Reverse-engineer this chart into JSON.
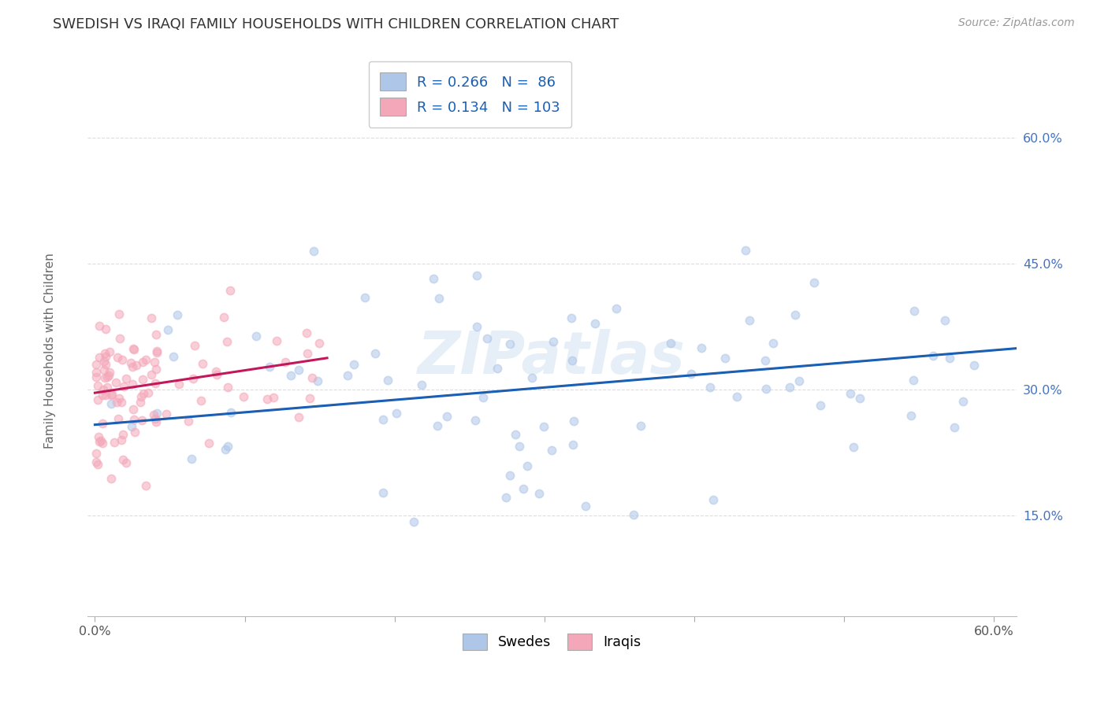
{
  "title": "SWEDISH VS IRAQI FAMILY HOUSEHOLDS WITH CHILDREN CORRELATION CHART",
  "source": "Source: ZipAtlas.com",
  "ylabel": "Family Households with Children",
  "watermark": "ZIPatlas",
  "legend_sw_R": "0.266",
  "legend_sw_N": "86",
  "legend_iq_R": "0.134",
  "legend_iq_N": "103",
  "swedes_color": "#aec6e8",
  "iraqis_color": "#f4a7b9",
  "swedes_line_color": "#1a5fb4",
  "iraqis_line_color": "#c2185b",
  "dashed_line_color": "#bbbbbb",
  "grid_color": "#dddddd",
  "title_color": "#333333",
  "title_fontsize": 13,
  "source_color": "#999999",
  "source_fontsize": 10,
  "watermark_color": "#c8ddf0",
  "watermark_alpha": 0.45,
  "scatter_size": 55,
  "scatter_alpha": 0.55,
  "xlim": [
    -0.005,
    0.615
  ],
  "ylim": [
    0.03,
    0.7
  ],
  "xticks": [
    0.0,
    0.1,
    0.2,
    0.3,
    0.4,
    0.5,
    0.6
  ],
  "yticks": [
    0.15,
    0.3,
    0.45,
    0.6
  ],
  "xtick_labels": [
    "0.0%",
    "",
    "",
    "",
    "",
    "",
    "60.0%"
  ],
  "ytick_labels": [
    "15.0%",
    "30.0%",
    "45.0%",
    "60.0%"
  ],
  "figsize": [
    14.06,
    8.92
  ],
  "dpi": 100,
  "sw_intercept": 0.258,
  "sw_slope": 0.148,
  "iq_intercept": 0.296,
  "iq_slope": 0.268
}
